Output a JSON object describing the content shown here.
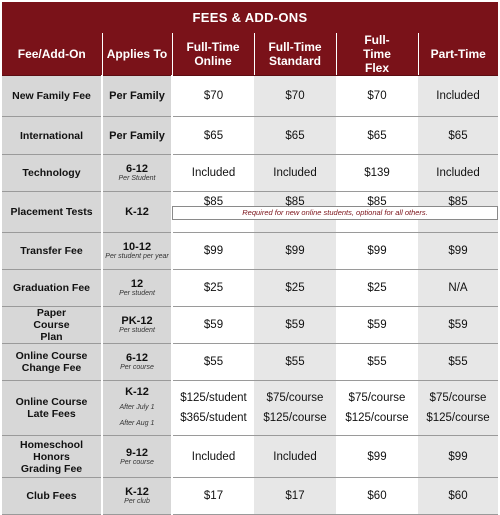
{
  "title": "FEES & ADD-ONS",
  "headers": [
    "Fee/Add-On",
    "Applies To",
    "Full-Time Online",
    "Full-Time Standard",
    "Full-Time Flex",
    "Part-Time"
  ],
  "rows": [
    {
      "fee": "New Family Fee",
      "applies": "Per Family",
      "sub": "",
      "values": [
        "$70",
        "$70",
        "$70",
        "Included"
      ]
    },
    {
      "fee": "International",
      "applies": "Per Family",
      "sub": "",
      "values": [
        "$65",
        "$65",
        "$65",
        "$65"
      ]
    },
    {
      "fee": "Technology",
      "applies": "6-12",
      "sub": "Per Student",
      "values": [
        "Included",
        "Included",
        "$139",
        "Included"
      ]
    },
    {
      "fee": "Placement Tests",
      "applies": "K-12",
      "sub": "",
      "values": [
        "$85",
        "$85",
        "$85",
        "$85"
      ]
    },
    {
      "fee": "Transfer Fee",
      "applies": "10-12",
      "sub": "Per student per year",
      "values": [
        "$99",
        "$99",
        "$99",
        "$99"
      ]
    },
    {
      "fee": "Graduation Fee",
      "applies": "12",
      "sub": "Per student",
      "values": [
        "$25",
        "$25",
        "$25",
        "N/A"
      ]
    },
    {
      "fee": "Paper Course Plan",
      "applies": "PK-12",
      "sub": "Per student",
      "values": [
        "$59",
        "$59",
        "$59",
        "$59"
      ]
    },
    {
      "fee": "Online Course Change Fee",
      "applies": "6-12",
      "sub": "Per course",
      "values": [
        "$55",
        "$55",
        "$55",
        "$55"
      ]
    },
    {
      "fee": "Online Course Late Fees",
      "applies": "K-12",
      "sub_lines": [
        "After July 1",
        "After Aug 1"
      ],
      "values_lines": [
        [
          "$125/student",
          "$365/student"
        ],
        [
          "$75/course",
          "$125/course"
        ],
        [
          "$75/course",
          "$125/course"
        ],
        [
          "$75/course",
          "$125/course"
        ]
      ]
    },
    {
      "fee": "Homeschool Honors Grading Fee",
      "applies": "9-12",
      "sub": "Per course",
      "values": [
        "Included",
        "Included",
        "$99",
        "$99"
      ]
    },
    {
      "fee": "Club Fees",
      "applies": "K-12",
      "sub": "Per club",
      "values": [
        "$17",
        "$17",
        "$60",
        "$60"
      ]
    }
  ],
  "placement_note": "Required for new online students, optional for all others."
}
